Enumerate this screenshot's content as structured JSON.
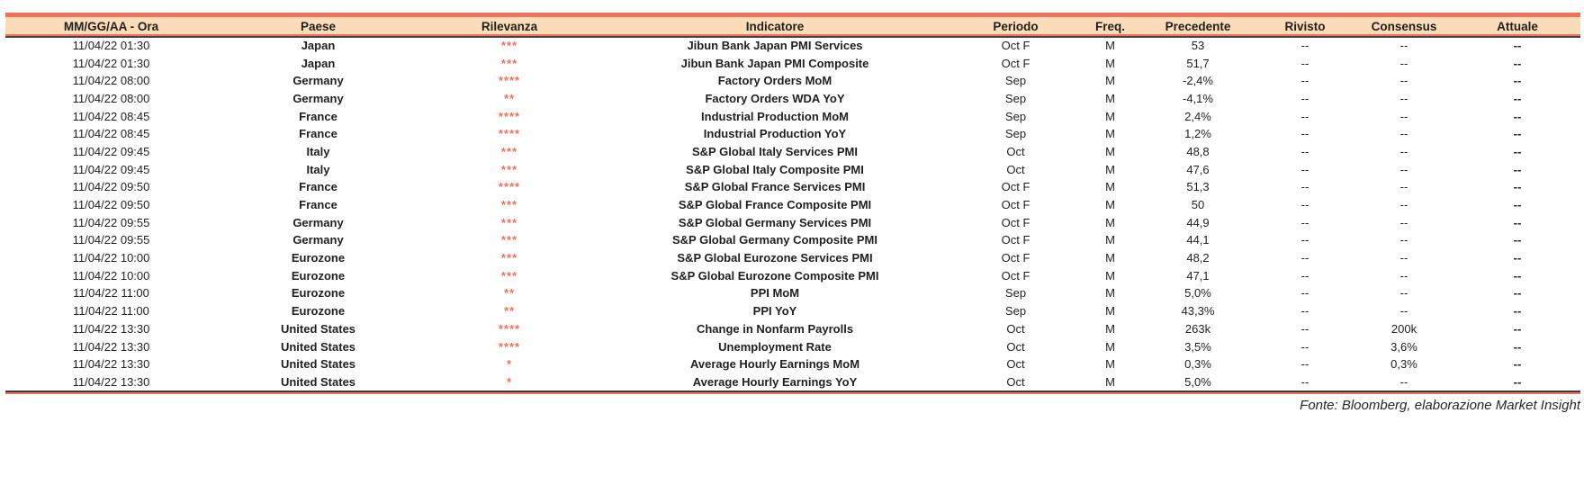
{
  "colors": {
    "accent": "#F3705A",
    "header_bg": "#FBDCB8",
    "text": "#1F1F1F",
    "rule": "#424242"
  },
  "table": {
    "columns": [
      {
        "key": "datetime",
        "label": "MM/GG/AA - Ora"
      },
      {
        "key": "country",
        "label": "Paese"
      },
      {
        "key": "relevance",
        "label": "Rilevanza"
      },
      {
        "key": "indicator",
        "label": "Indicatore"
      },
      {
        "key": "period",
        "label": "Periodo"
      },
      {
        "key": "freq",
        "label": "Freq."
      },
      {
        "key": "previous",
        "label": "Precedente"
      },
      {
        "key": "revised",
        "label": "Rivisto"
      },
      {
        "key": "consensus",
        "label": "Consensus"
      },
      {
        "key": "actual",
        "label": "Attuale"
      }
    ],
    "rows": [
      {
        "datetime": "11/04/22 01:30",
        "country": "Japan",
        "relevance": "***",
        "indicator": "Jibun Bank Japan PMI Services",
        "period": "Oct F",
        "freq": "M",
        "previous": "53",
        "revised": "--",
        "consensus": "--",
        "actual": "--"
      },
      {
        "datetime": "11/04/22 01:30",
        "country": "Japan",
        "relevance": "***",
        "indicator": "Jibun Bank Japan PMI Composite",
        "period": "Oct F",
        "freq": "M",
        "previous": "51,7",
        "revised": "--",
        "consensus": "--",
        "actual": "--"
      },
      {
        "datetime": "11/04/22 08:00",
        "country": "Germany",
        "relevance": "****",
        "indicator": "Factory Orders MoM",
        "period": "Sep",
        "freq": "M",
        "previous": "-2,4%",
        "revised": "--",
        "consensus": "--",
        "actual": "--"
      },
      {
        "datetime": "11/04/22 08:00",
        "country": "Germany",
        "relevance": "**",
        "indicator": "Factory Orders WDA YoY",
        "period": "Sep",
        "freq": "M",
        "previous": "-4,1%",
        "revised": "--",
        "consensus": "--",
        "actual": "--"
      },
      {
        "datetime": "11/04/22 08:45",
        "country": "France",
        "relevance": "****",
        "indicator": "Industrial Production MoM",
        "period": "Sep",
        "freq": "M",
        "previous": "2,4%",
        "revised": "--",
        "consensus": "--",
        "actual": "--"
      },
      {
        "datetime": "11/04/22 08:45",
        "country": "France",
        "relevance": "****",
        "indicator": "Industrial Production YoY",
        "period": "Sep",
        "freq": "M",
        "previous": "1,2%",
        "revised": "--",
        "consensus": "--",
        "actual": "--"
      },
      {
        "datetime": "11/04/22 09:45",
        "country": "Italy",
        "relevance": "***",
        "indicator": "S&P Global Italy Services PMI",
        "period": "Oct",
        "freq": "M",
        "previous": "48,8",
        "revised": "--",
        "consensus": "--",
        "actual": "--"
      },
      {
        "datetime": "11/04/22 09:45",
        "country": "Italy",
        "relevance": "***",
        "indicator": "S&P Global Italy Composite PMI",
        "period": "Oct",
        "freq": "M",
        "previous": "47,6",
        "revised": "--",
        "consensus": "--",
        "actual": "--"
      },
      {
        "datetime": "11/04/22 09:50",
        "country": "France",
        "relevance": "****",
        "indicator": "S&P Global France Services PMI",
        "period": "Oct F",
        "freq": "M",
        "previous": "51,3",
        "revised": "--",
        "consensus": "--",
        "actual": "--"
      },
      {
        "datetime": "11/04/22 09:50",
        "country": "France",
        "relevance": "***",
        "indicator": "S&P Global France Composite PMI",
        "period": "Oct F",
        "freq": "M",
        "previous": "50",
        "revised": "--",
        "consensus": "--",
        "actual": "--"
      },
      {
        "datetime": "11/04/22 09:55",
        "country": "Germany",
        "relevance": "***",
        "indicator": "S&P Global Germany Services PMI",
        "period": "Oct F",
        "freq": "M",
        "previous": "44,9",
        "revised": "--",
        "consensus": "--",
        "actual": "--"
      },
      {
        "datetime": "11/04/22 09:55",
        "country": "Germany",
        "relevance": "***",
        "indicator": "S&P Global Germany Composite PMI",
        "period": "Oct F",
        "freq": "M",
        "previous": "44,1",
        "revised": "--",
        "consensus": "--",
        "actual": "--"
      },
      {
        "datetime": "11/04/22 10:00",
        "country": "Eurozone",
        "relevance": "***",
        "indicator": "S&P Global Eurozone Services PMI",
        "period": "Oct F",
        "freq": "M",
        "previous": "48,2",
        "revised": "--",
        "consensus": "--",
        "actual": "--"
      },
      {
        "datetime": "11/04/22 10:00",
        "country": "Eurozone",
        "relevance": "***",
        "indicator": "S&P Global Eurozone Composite PMI",
        "period": "Oct F",
        "freq": "M",
        "previous": "47,1",
        "revised": "--",
        "consensus": "--",
        "actual": "--"
      },
      {
        "datetime": "11/04/22 11:00",
        "country": "Eurozone",
        "relevance": "**",
        "indicator": "PPI MoM",
        "period": "Sep",
        "freq": "M",
        "previous": "5,0%",
        "revised": "--",
        "consensus": "--",
        "actual": "--"
      },
      {
        "datetime": "11/04/22 11:00",
        "country": "Eurozone",
        "relevance": "**",
        "indicator": "PPI YoY",
        "period": "Sep",
        "freq": "M",
        "previous": "43,3%",
        "revised": "--",
        "consensus": "--",
        "actual": "--"
      },
      {
        "datetime": "11/04/22 13:30",
        "country": "United States",
        "relevance": "****",
        "indicator": "Change in Nonfarm Payrolls",
        "period": "Oct",
        "freq": "M",
        "previous": "263k",
        "revised": "--",
        "consensus": "200k",
        "actual": "--"
      },
      {
        "datetime": "11/04/22 13:30",
        "country": "United States",
        "relevance": "****",
        "indicator": "Unemployment Rate",
        "period": "Oct",
        "freq": "M",
        "previous": "3,5%",
        "revised": "--",
        "consensus": "3,6%",
        "actual": "--"
      },
      {
        "datetime": "11/04/22 13:30",
        "country": "United States",
        "relevance": "*",
        "indicator": "Average Hourly Earnings MoM",
        "period": "Oct",
        "freq": "M",
        "previous": "0,3%",
        "revised": "--",
        "consensus": "0,3%",
        "actual": "--"
      },
      {
        "datetime": "11/04/22 13:30",
        "country": "United States",
        "relevance": "*",
        "indicator": "Average Hourly Earnings YoY",
        "period": "Oct",
        "freq": "M",
        "previous": "5,0%",
        "revised": "--",
        "consensus": "--",
        "actual": "--"
      }
    ]
  },
  "footer": {
    "source_note": "Fonte: Bloomberg, elaborazione Market Insight"
  }
}
